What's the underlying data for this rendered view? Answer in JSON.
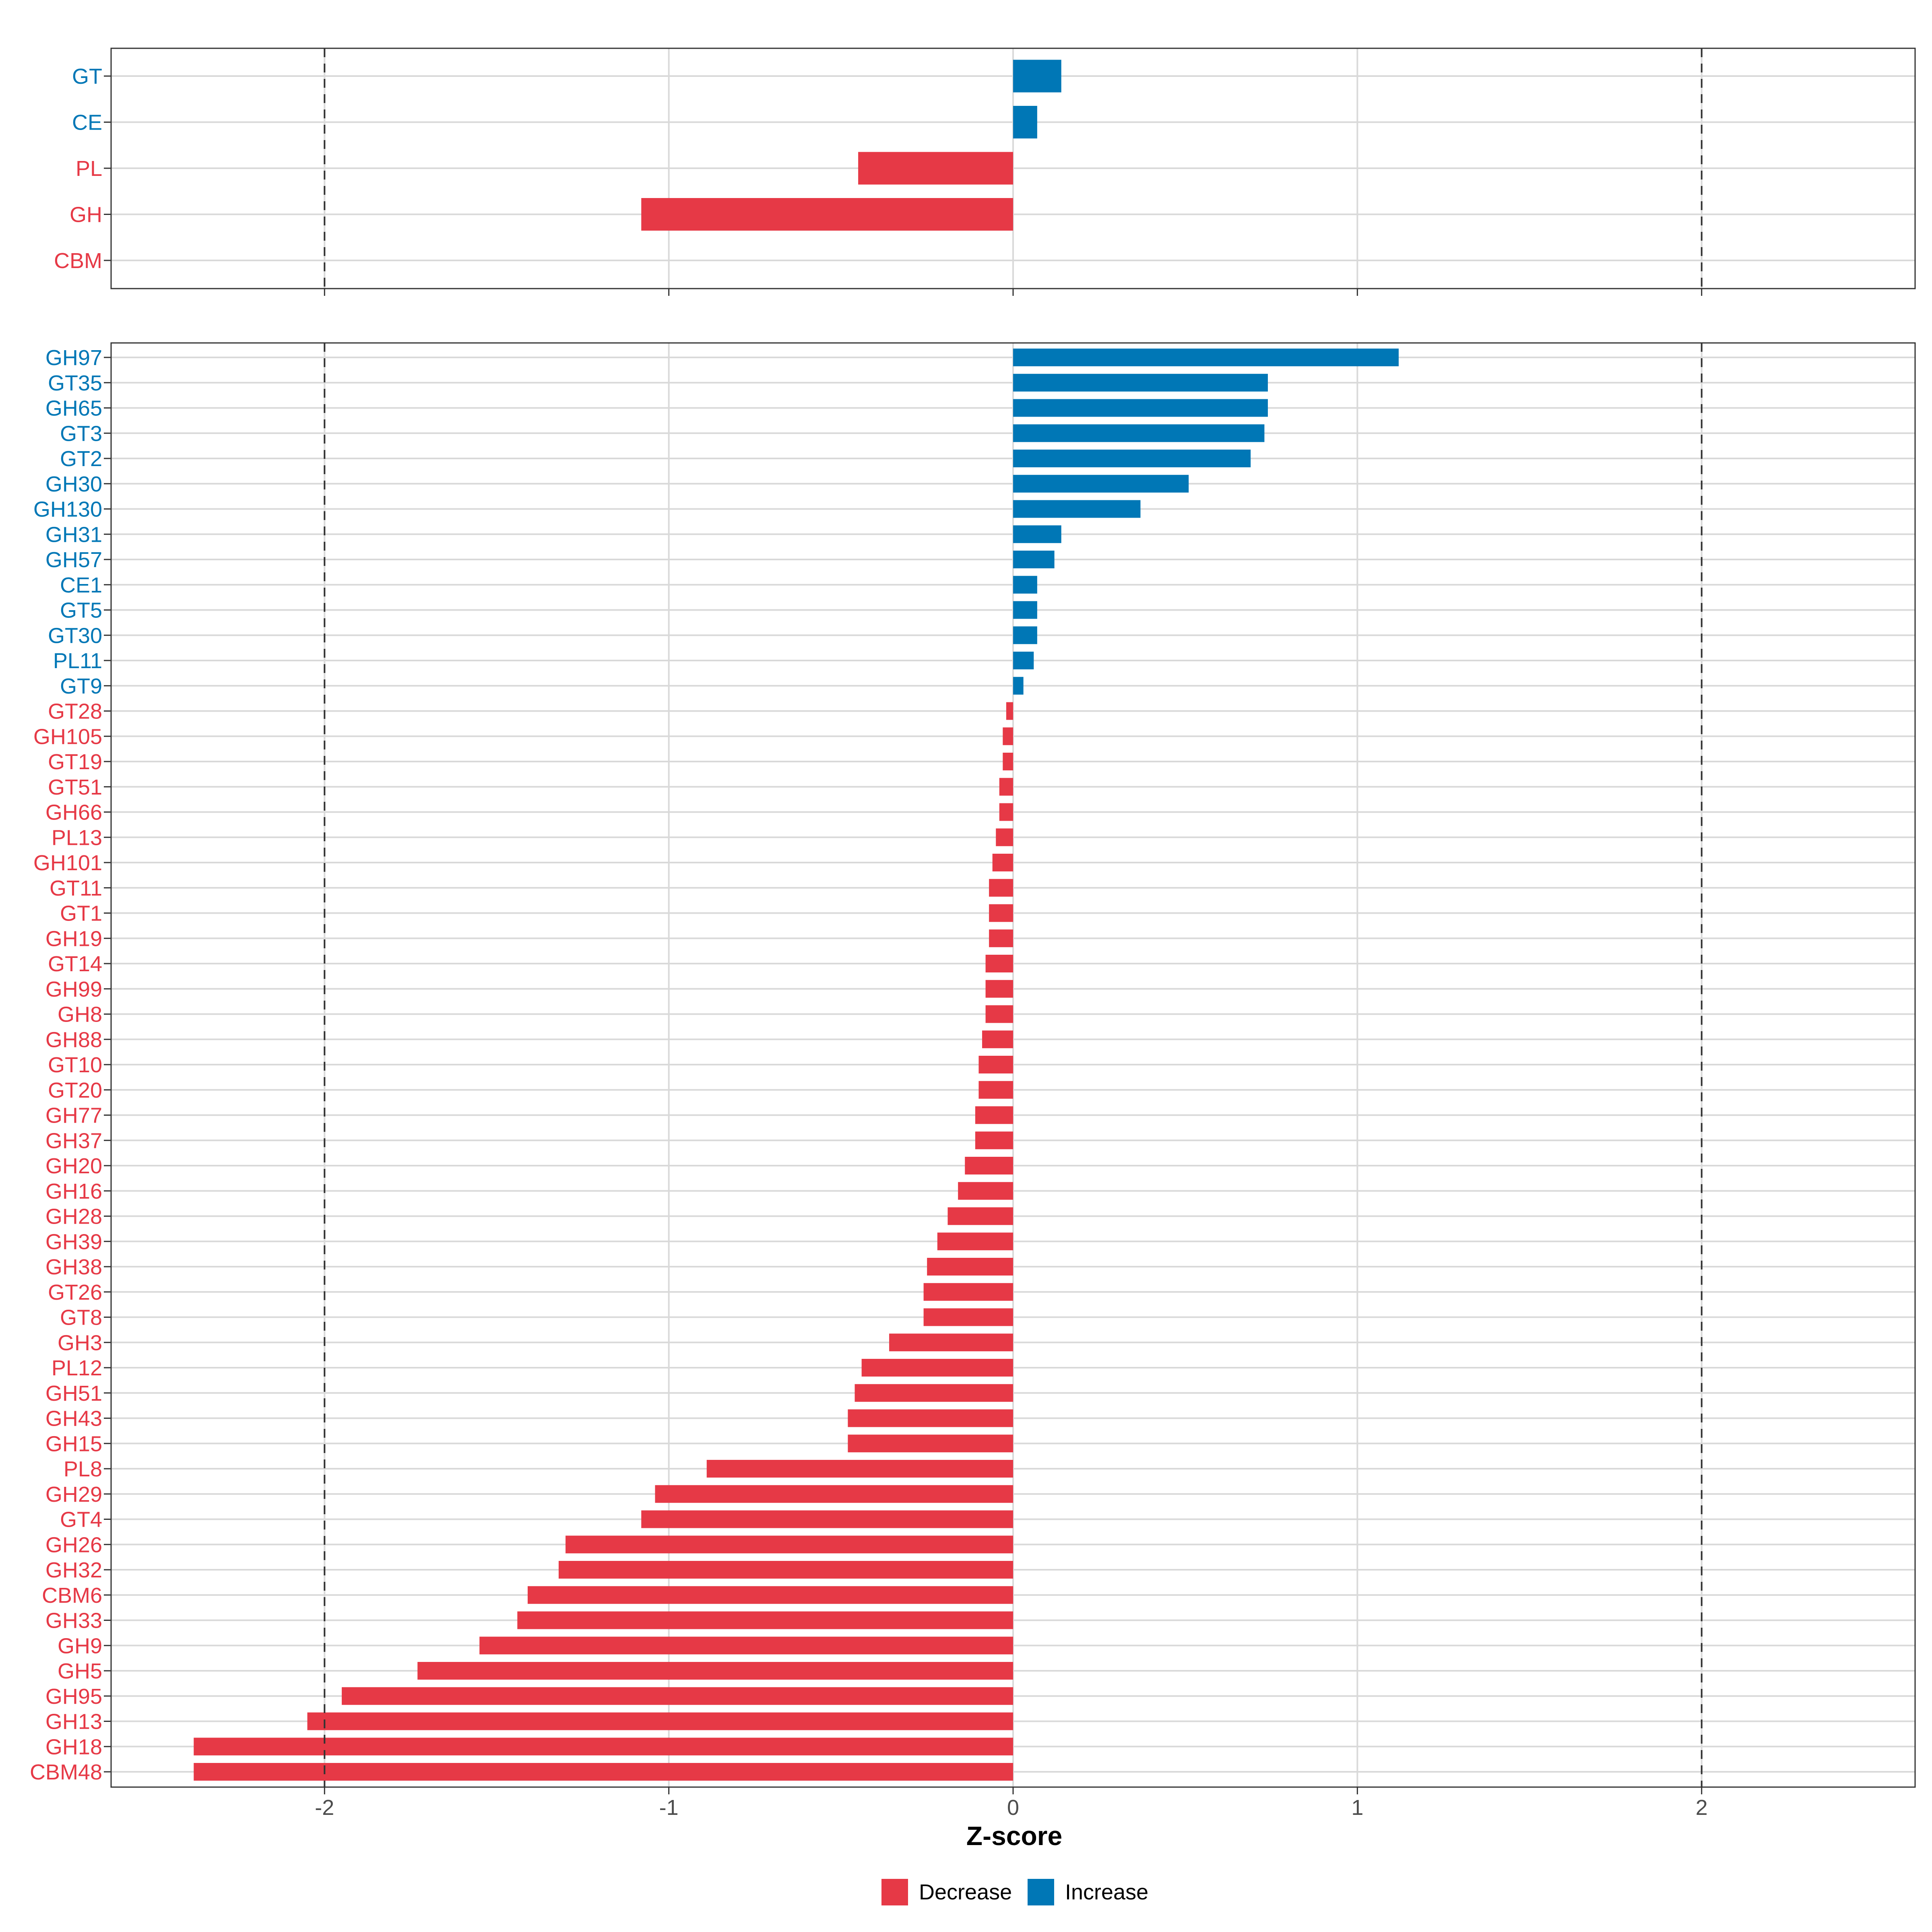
{
  "chart_data": [
    {
      "type": "bar",
      "orientation": "horizontal",
      "panel": "top",
      "categories": [
        "GT",
        "CE",
        "PL",
        "GH",
        "CBM"
      ],
      "values": [
        0.14,
        0.07,
        -0.45,
        -1.08,
        0.0
      ],
      "groups": [
        "Increase",
        "Increase",
        "Decrease",
        "Decrease",
        "Decrease"
      ],
      "xlim": [
        -2.62,
        2.62
      ],
      "xticks": [
        -2,
        -1,
        0,
        1,
        2
      ],
      "reference_lines": [
        -2,
        2
      ]
    },
    {
      "type": "bar",
      "orientation": "horizontal",
      "panel": "bottom",
      "categories": [
        "GH97",
        "GT35",
        "GH65",
        "GT3",
        "GT2",
        "GH30",
        "GH130",
        "GH31",
        "GH57",
        "CE1",
        "GT5",
        "GT30",
        "PL11",
        "GT9",
        "GT28",
        "GH105",
        "GT19",
        "GT51",
        "GH66",
        "PL13",
        "GH101",
        "GT11",
        "GT1",
        "GH19",
        "GT14",
        "GH99",
        "GH8",
        "GH88",
        "GT10",
        "GT20",
        "GH77",
        "GH37",
        "GH20",
        "GH16",
        "GH28",
        "GH39",
        "GH38",
        "GT26",
        "GT8",
        "GH3",
        "PL12",
        "GH51",
        "GH43",
        "GH15",
        "PL8",
        "GH29",
        "GT4",
        "GH26",
        "GH32",
        "CBM6",
        "GH33",
        "GH9",
        "GH5",
        "GH95",
        "GH13",
        "GH18",
        "CBM48"
      ],
      "values": [
        1.12,
        0.74,
        0.74,
        0.73,
        0.69,
        0.51,
        0.37,
        0.14,
        0.12,
        0.07,
        0.07,
        0.07,
        0.06,
        0.03,
        -0.02,
        -0.03,
        -0.03,
        -0.04,
        -0.04,
        -0.05,
        -0.06,
        -0.07,
        -0.07,
        -0.07,
        -0.08,
        -0.08,
        -0.08,
        -0.09,
        -0.1,
        -0.1,
        -0.11,
        -0.11,
        -0.14,
        -0.16,
        -0.19,
        -0.22,
        -0.25,
        -0.26,
        -0.26,
        -0.36,
        -0.44,
        -0.46,
        -0.48,
        -0.48,
        -0.89,
        -1.04,
        -1.08,
        -1.3,
        -1.32,
        -1.41,
        -1.44,
        -1.55,
        -1.73,
        -1.95,
        -2.05,
        -2.38,
        -2.38
      ],
      "groups": [
        "Increase",
        "Increase",
        "Increase",
        "Increase",
        "Increase",
        "Increase",
        "Increase",
        "Increase",
        "Increase",
        "Increase",
        "Increase",
        "Increase",
        "Increase",
        "Increase",
        "Decrease",
        "Decrease",
        "Decrease",
        "Decrease",
        "Decrease",
        "Decrease",
        "Decrease",
        "Decrease",
        "Decrease",
        "Decrease",
        "Decrease",
        "Decrease",
        "Decrease",
        "Decrease",
        "Decrease",
        "Decrease",
        "Decrease",
        "Decrease",
        "Decrease",
        "Decrease",
        "Decrease",
        "Decrease",
        "Decrease",
        "Decrease",
        "Decrease",
        "Decrease",
        "Decrease",
        "Decrease",
        "Decrease",
        "Decrease",
        "Decrease",
        "Decrease",
        "Decrease",
        "Decrease",
        "Decrease",
        "Decrease",
        "Decrease",
        "Decrease",
        "Decrease",
        "Decrease",
        "Decrease",
        "Decrease",
        "Decrease"
      ],
      "xlim": [
        -2.62,
        2.62
      ],
      "xticks": [
        -2,
        -1,
        0,
        1,
        2
      ],
      "xtick_labels": [
        "-2",
        "-1",
        "0",
        "1",
        "2"
      ],
      "reference_lines": [
        -2,
        2
      ],
      "xlabel": "Z-score"
    }
  ],
  "legend": {
    "position": "bottom",
    "entries": [
      {
        "label": "Decrease",
        "color": "#E63946"
      },
      {
        "label": "Increase",
        "color": "#0077B6"
      }
    ]
  },
  "colors": {
    "Decrease": "#E63946",
    "Increase": "#0077B6",
    "grid": "#d9d9d9",
    "border": "#333333"
  }
}
